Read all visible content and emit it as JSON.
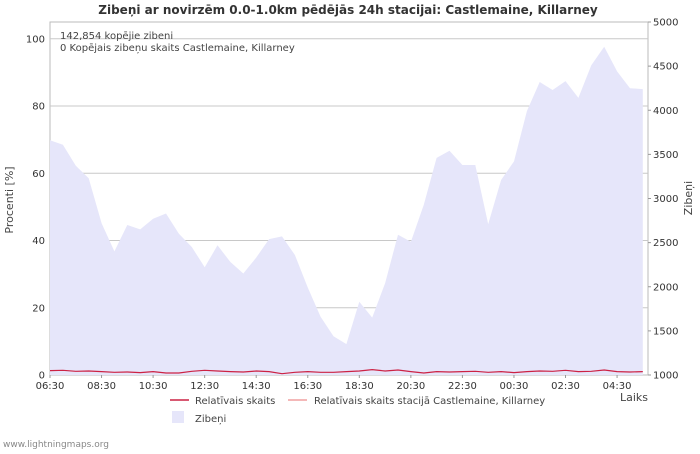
{
  "chart_data": {
    "type": "area",
    "title": "Zibeņi ar novirzēm 0.0-1.0km pēdējās 24h stacijai: Castlemaine, Killarney",
    "info_lines": [
      "142,854 kopējie zibeni",
      "0 Kopējais zibeņu skaits Castlemaine, Killarney"
    ],
    "ylabel_left": "Procenti  [%]",
    "ylabel_right": "Zibeņi",
    "xlabel": "Laiks",
    "ylim_left": [
      0,
      105
    ],
    "ylim_right": [
      1000,
      5000
    ],
    "yticks_left": [
      "0",
      "20",
      "40",
      "60",
      "80",
      "100"
    ],
    "yticks_right": [
      "1000",
      "1500",
      "2000",
      "2500",
      "3000",
      "3500",
      "4000",
      "4500",
      "5000"
    ],
    "xticks": [
      "06:30",
      "08:30",
      "10:30",
      "12:30",
      "14:30",
      "16:30",
      "18:30",
      "20:30",
      "22:30",
      "00:30",
      "02:30",
      "04:30"
    ],
    "x_hours": [
      0,
      0.5,
      1,
      1.5,
      2,
      2.5,
      3,
      3.5,
      4,
      4.5,
      5,
      5.5,
      6,
      6.5,
      7,
      7.5,
      8,
      8.5,
      9,
      9.5,
      10,
      10.5,
      11,
      11.5,
      12,
      12.5,
      13,
      13.5,
      14,
      14.5,
      15,
      15.5,
      16,
      16.5,
      17,
      17.5,
      18,
      18.5,
      19,
      19.5,
      20,
      20.5,
      21,
      21.5,
      22,
      22.5,
      23
    ],
    "series": [
      {
        "name": "Zibeņi",
        "axis": "right",
        "color": "#e6e6fa",
        "values": [
          3660,
          3610,
          3370,
          3230,
          2720,
          2400,
          2700,
          2650,
          2770,
          2830,
          2600,
          2450,
          2220,
          2470,
          2280,
          2150,
          2330,
          2540,
          2570,
          2360,
          1990,
          1660,
          1440,
          1350,
          1830,
          1650,
          2040,
          2590,
          2510,
          2930,
          3460,
          3540,
          3380,
          3380,
          2710,
          3210,
          3420,
          3990,
          4320,
          4230,
          4330,
          4140,
          4510,
          4720,
          4440,
          4250,
          4240
        ]
      },
      {
        "name": "Relatīvais skaits",
        "axis": "left",
        "color": "#cc2244",
        "values": [
          1.3,
          1.4,
          1.1,
          1.2,
          1.0,
          0.8,
          0.9,
          0.7,
          1.0,
          0.6,
          0.6,
          1.1,
          1.4,
          1.2,
          1.0,
          0.9,
          1.2,
          1.0,
          0.4,
          0.8,
          1.0,
          0.8,
          0.8,
          1.0,
          1.2,
          1.6,
          1.2,
          1.5,
          1.0,
          0.6,
          1.0,
          0.9,
          1.0,
          1.1,
          0.8,
          1.0,
          0.7,
          1.0,
          1.2,
          1.1,
          1.4,
          1.0,
          1.1,
          1.5,
          1.0,
          0.9,
          1.0
        ]
      },
      {
        "name": "Relatīvais skaits stacijā Castlemaine, Killarney",
        "axis": "left",
        "color": "#f0a0a0",
        "values": []
      }
    ],
    "legend": [
      "Relatīvais skaits",
      "Relatīvais skaits stacijā Castlemaine, Killarney",
      "Zibeņi"
    ],
    "grid": true,
    "footer": "www.lightningmaps.org"
  }
}
